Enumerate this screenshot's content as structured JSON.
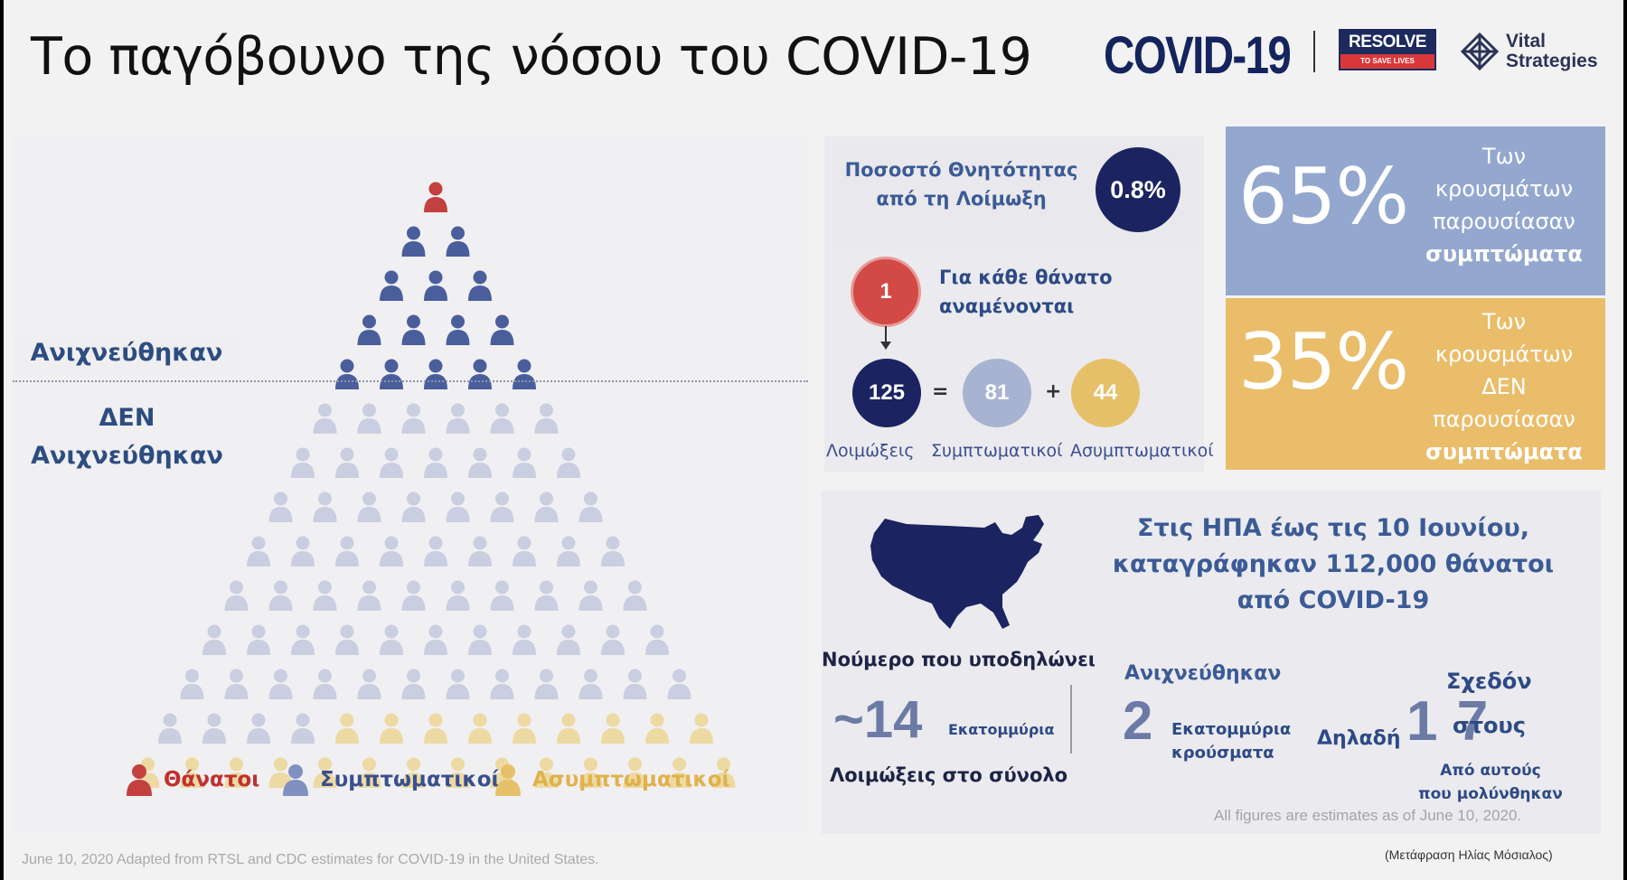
{
  "title": "Το παγόβουνο της νόσου του COVID-19",
  "logos": {
    "covid": "COVID-19",
    "resolve_top": "RESOLVE",
    "resolve_bottom": "TO SAVE LIVES",
    "vital_line1": "Vital",
    "vital_line2": "Strategies"
  },
  "pyramid": {
    "traced_label": "Ανιχνεύθηκαν",
    "untraced_label_line1": "ΔΕΝ",
    "untraced_label_line2": "Ανιχνεύθηκαν",
    "rows": [
      1,
      2,
      3,
      4,
      5,
      6,
      7,
      8,
      9,
      10,
      11,
      12,
      13,
      14
    ],
    "symptomatic_total": 81,
    "asymptomatic_total": 44,
    "colors": {
      "death": "#c2413f",
      "symptomatic": "#4a5e9c",
      "symptomatic_faded": "#c9cee0",
      "asymptomatic": "#edd9a2"
    }
  },
  "legend": {
    "deaths": "Θάνατοι",
    "symptomatic": "Συμπτωματικοί",
    "asymptomatic": "Ασυμπτωματικοί"
  },
  "mortality": {
    "label_line1": "Ποσοστό Θνητότητας",
    "label_line2": "από τη Λοίμωξη",
    "value": "0.8%"
  },
  "per_death": {
    "count": "1",
    "label_line1": "Για κάθε θάνατο",
    "label_line2": "αναμένονται"
  },
  "equation": {
    "infections": "125",
    "symptomatic": "81",
    "asymptomatic": "44",
    "eq": "=",
    "plus": "+",
    "cap_infections": "Λοιμώξεις",
    "cap_symptomatic": "Συμπτωματικοί",
    "cap_asymptomatic": "Ασυμπτωματικοί"
  },
  "blocks": {
    "blue": {
      "pct": "65%",
      "line1": "Των",
      "line2": "κρουσμάτων",
      "line3": "παρουσίασαν",
      "line4": "συμπτώματα",
      "color": "#93a7cf"
    },
    "gold": {
      "pct": "35%",
      "line1": "Των",
      "line2": "κρουσμάτων",
      "line3": "ΔΕΝ",
      "line4": "παρουσίασαν",
      "line5": "συμπτώματα",
      "color": "#e9bd6a"
    }
  },
  "usa": {
    "line1": "Στις ΗΠΑ έως τις 10 Ιουνίου,",
    "line2": "καταγράφηκαν 112,000 θάνατοι",
    "line3": "από COVID-19",
    "map_color": "#1b2461"
  },
  "bottom": {
    "hint_label": "Νούμερο που υποδηλώνει",
    "infections_value": "~14",
    "infections_unit": "Εκατομμύρια",
    "total_label": "Λοιμώξεις στο σύνολο",
    "traced_label": "Ανιχνεύθηκαν",
    "traced_value": "2",
    "traced_unit_line1": "Εκατομμύρια",
    "traced_unit_line2": "κρούσματα",
    "meaning": "Δηλαδή",
    "ratio": "1 7",
    "almost": "Σχεδόν",
    "in_the": "στους",
    "of_infected_line1": "Από αυτούς",
    "of_infected_line2": "που μολύνθηκαν",
    "estimates_note": "All figures are estimates as of June 10, 2020."
  },
  "footer": {
    "source": "June 10, 2020   Adapted from RTSL and CDC estimates for COVID-19 in the United States.",
    "translation": "(Μετάφραση Ηλίας Μόσιαλος)"
  }
}
